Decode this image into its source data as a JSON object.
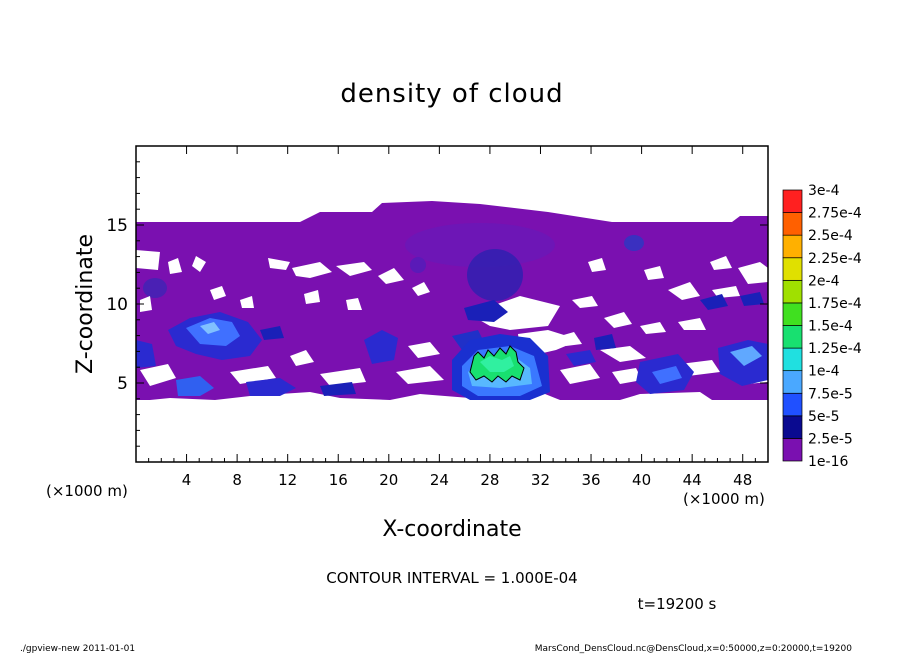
{
  "chart_data": {
    "type": "heatmap",
    "title": "density of cloud",
    "xlabel": "X-coordinate",
    "ylabel": "Z-coordinate",
    "x_unit": "(×1000 m)",
    "z_unit": "(×1000 m)",
    "xlim": [
      0,
      50
    ],
    "ylim": [
      0,
      20
    ],
    "x_ticks": [
      "4",
      "8",
      "12",
      "16",
      "20",
      "24",
      "28",
      "32",
      "36",
      "40",
      "44",
      "48"
    ],
    "x_tick_values": [
      4,
      8,
      12,
      16,
      20,
      24,
      28,
      32,
      36,
      40,
      44,
      48
    ],
    "y_ticks": [
      "5",
      "10",
      "15"
    ],
    "y_tick_values": [
      5,
      10,
      15
    ],
    "colorbar": {
      "labels": [
        "1e-16",
        "2.5e-5",
        "5e-5",
        "7.5e-5",
        "1e-4",
        "1.25e-4",
        "1.5e-4",
        "1.75e-4",
        "2e-4",
        "2.25e-4",
        "2.5e-4",
        "2.75e-4",
        "3e-4"
      ],
      "colors": [
        "#7a10b0",
        "#0a0a90",
        "#2050ff",
        "#4aa8ff",
        "#20e0e0",
        "#18e070",
        "#40e020",
        "#a0e000",
        "#e0e000",
        "#ffb000",
        "#ff6000",
        "#ff2020",
        "#ff8080"
      ]
    },
    "contour_interval_label": "CONTOUR INTERVAL = 1.000E-04",
    "time_label": "t=19200 s",
    "cloud_region": {
      "layer_bottom_z": 4.0,
      "layer_top_z": 15.0,
      "peak_region_x": [
        26.5,
        31.0
      ],
      "peak_region_z": [
        5.0,
        7.2
      ]
    }
  },
  "footer": {
    "left": "./gpview-new   2011-01-01",
    "right": "MarsCond_DensCloud.nc@DensCloud,x=0:50000,z=0:20000,t=19200"
  },
  "colors": {
    "base_purple": "#7a10b0",
    "deep_blue": "#1030c8",
    "light_blue": "#4aa8ff",
    "green": "#18e070"
  }
}
